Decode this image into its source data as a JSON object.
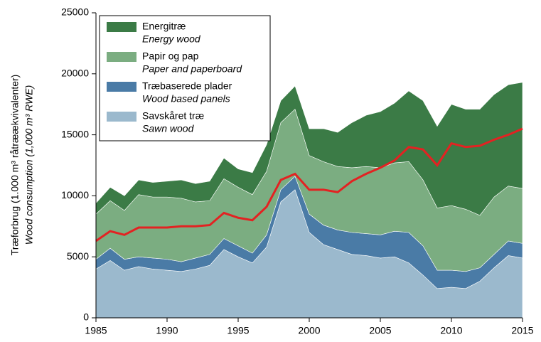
{
  "chart_data": {
    "type": "stacked_area",
    "y_label": "Træforbrug (1.000 m³ råtræækvivalenter)",
    "y_label_en": "Wood consumption (1,000 m³ RWE)",
    "x": [
      1985,
      1986,
      1987,
      1988,
      1989,
      1990,
      1991,
      1992,
      1993,
      1994,
      1995,
      1996,
      1997,
      1998,
      1999,
      2000,
      2001,
      2002,
      2003,
      2004,
      2005,
      2006,
      2007,
      2008,
      2009,
      2010,
      2011,
      2012,
      2013,
      2014,
      2015
    ],
    "series": [
      {
        "name": "Energitræ",
        "name_en": "Energy wood",
        "color": "#3b7b46",
        "values": [
          900,
          1100,
          1200,
          1200,
          1200,
          1300,
          1500,
          1500,
          1600,
          1700,
          1500,
          1800,
          2200,
          1800,
          1900,
          2200,
          2700,
          2800,
          3700,
          4200,
          4600,
          4900,
          5800,
          6500,
          6700,
          8300,
          8200,
          8700,
          8400,
          8300,
          8700
        ]
      },
      {
        "name": "Papir og pap",
        "name_en": "Paper and paperboard",
        "color": "#7bad81",
        "values": [
          3700,
          3900,
          4000,
          5100,
          5000,
          5100,
          5200,
          4600,
          4400,
          4900,
          4800,
          4800,
          5200,
          5500,
          5500,
          4800,
          5200,
          5200,
          5300,
          5500,
          5500,
          5600,
          5800,
          5400,
          5100,
          5300,
          5100,
          4300,
          4700,
          4500,
          4500
        ]
      },
      {
        "name": "Træbaserede plader",
        "name_en": "Wood based panels",
        "color": "#4a7ba6",
        "values": [
          800,
          1000,
          900,
          800,
          900,
          900,
          800,
          900,
          900,
          900,
          900,
          800,
          1000,
          1000,
          1100,
          1500,
          1600,
          1600,
          1800,
          1800,
          1900,
          2100,
          2500,
          2400,
          1500,
          1400,
          1400,
          1100,
          1100,
          1200,
          1200
        ]
      },
      {
        "name": "Savskåret træ",
        "name_en": "Sawn wood",
        "color": "#9bb9cd",
        "values": [
          4000,
          4700,
          3900,
          4200,
          4000,
          3900,
          3800,
          4000,
          4300,
          5600,
          5000,
          4500,
          5800,
          9500,
          10500,
          7000,
          6000,
          5600,
          5200,
          5100,
          4900,
          5000,
          4500,
          3500,
          2400,
          2500,
          2400,
          3000,
          4100,
          5100,
          4900
        ]
      }
    ],
    "line": {
      "color": "#e32222",
      "values": [
        6300,
        7100,
        6800,
        7400,
        7400,
        7400,
        7500,
        7500,
        7600,
        8600,
        8200,
        8000,
        9100,
        11300,
        11800,
        10500,
        10500,
        10300,
        11200,
        11800,
        12300,
        12900,
        14000,
        13800,
        12500,
        14300,
        14000,
        14100,
        14600,
        15000,
        15500
      ]
    },
    "xlim": [
      1985,
      2015
    ],
    "xticks": [
      1985,
      1990,
      1995,
      2000,
      2005,
      2010,
      2015
    ],
    "ylim": [
      0,
      25000
    ],
    "yticks": [
      0,
      5000,
      10000,
      15000,
      20000,
      25000
    ]
  }
}
